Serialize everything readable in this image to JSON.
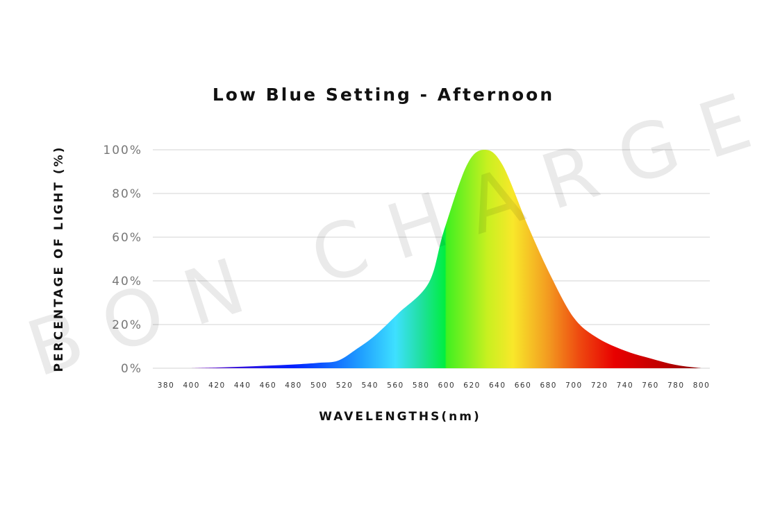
{
  "chart_data": {
    "type": "area",
    "title": "Low Blue Setting - Afternoon",
    "xlabel": "WAVELENGTHS(nm)",
    "ylabel": "PERCENTAGE OF LIGHT (%)",
    "xlim": [
      380,
      800
    ],
    "ylim": [
      0,
      100
    ],
    "x_ticks": [
      380,
      400,
      420,
      440,
      460,
      480,
      500,
      520,
      540,
      560,
      580,
      600,
      620,
      640,
      660,
      680,
      700,
      720,
      740,
      760,
      780,
      800
    ],
    "y_ticks": [
      "0%",
      "20%",
      "40%",
      "60%",
      "80%",
      "100%"
    ],
    "grid": true,
    "fill": "visible-spectrum gradient",
    "watermark": "BON CHARGE",
    "x": [
      400,
      420,
      440,
      460,
      480,
      500,
      515,
      530,
      544,
      562,
      586,
      598,
      616,
      630,
      644,
      664,
      682,
      700,
      718,
      740,
      760,
      780,
      800
    ],
    "y": [
      0,
      0.3,
      0.7,
      1.2,
      1.7,
      2.5,
      3.5,
      9,
      15,
      25,
      39,
      63,
      93,
      100,
      93,
      65,
      42,
      23,
      14,
      8,
      4.5,
      1.5,
      0
    ]
  }
}
